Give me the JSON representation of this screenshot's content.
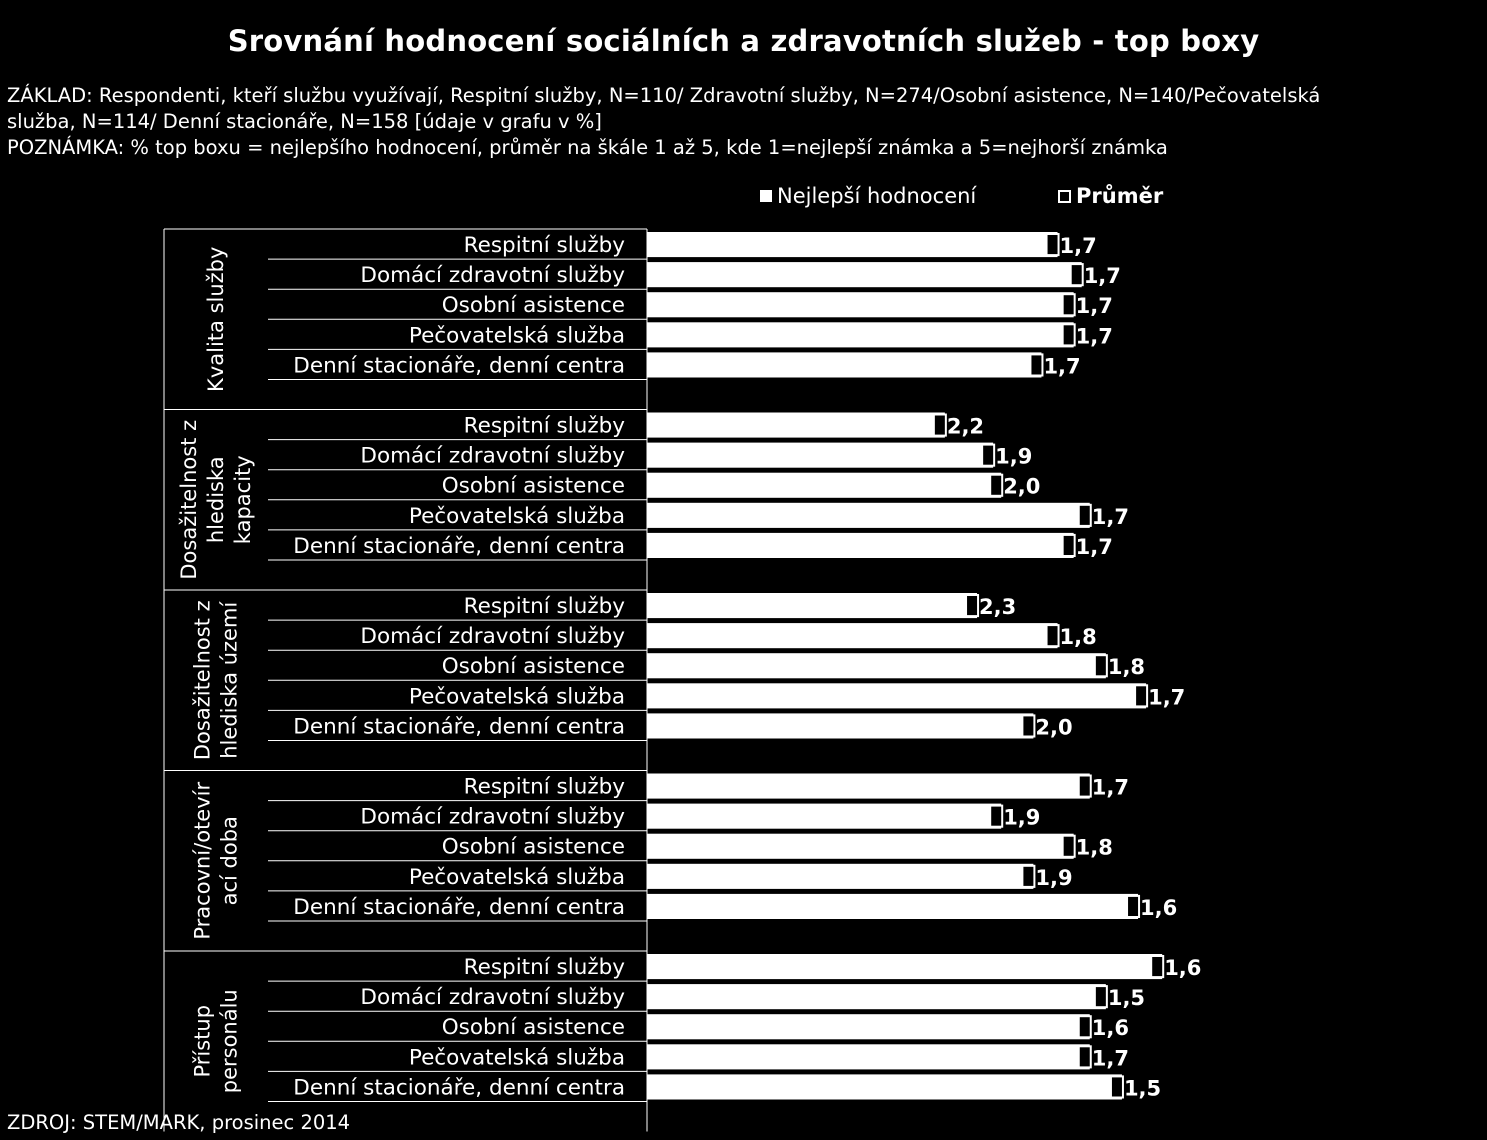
{
  "title": "Srovnání hodnocení sociálních a zdravotních služeb - top boxy",
  "basis_line1": "ZÁKLAD: Respondenti, kteří službu využívají, Respitní služby, N=110/ Zdravotní služby, N=274/Osobní asistence, N=140/Pečovatelská",
  "basis_line2": "služba, N=114/ Denní stacionáře, N=158 [údaje v grafu v %]",
  "note": "POZNÁMKA: % top boxu = nejlepšího hodnocení, průměr na škále 1 až 5, kde 1=nejlepší známka a  5=nejhorší známka",
  "legend": {
    "best": "Nejlepší hodnocení",
    "avg": "Průměr"
  },
  "source": "ZDROJ: STEM/MARK, prosinec 2014",
  "colors": {
    "background": "#000000",
    "bar": "#ffffff",
    "marker_fill": "#000000"
  },
  "chart_data": {
    "type": "bar",
    "orientation": "horizontal",
    "series": [
      {
        "name": "Nejlepší hodnocení"
      },
      {
        "name": "Průměr"
      }
    ],
    "groups": [
      {
        "label": "Kvalita služby",
        "label_lines": [
          "Kvalita služby"
        ],
        "items": [
          {
            "category": "Respitní služby",
            "best": 51,
            "avg": "1,7"
          },
          {
            "category": "Domácí zdravotní služby",
            "best": 54,
            "avg": "1,7"
          },
          {
            "category": "Osobní asistence",
            "best": 53,
            "avg": "1,7"
          },
          {
            "category": "Pečovatelská služba",
            "best": 53,
            "avg": "1,7"
          },
          {
            "category": "Denní stacionáře, denní centra",
            "best": 49,
            "avg": "1,7"
          }
        ]
      },
      {
        "label": "Dosažitelnost z hlediska kapacity",
        "label_lines": [
          "Dosažitelnost z",
          "hlediska",
          "kapacity"
        ],
        "items": [
          {
            "category": "Respitní služby",
            "best": 37,
            "avg": "2,2"
          },
          {
            "category": "Domácí zdravotní služby",
            "best": 43,
            "avg": "1,9"
          },
          {
            "category": "Osobní asistence",
            "best": 44,
            "avg": "2,0"
          },
          {
            "category": "Pečovatelská služba",
            "best": 55,
            "avg": "1,7"
          },
          {
            "category": "Denní stacionáře, denní centra",
            "best": 53,
            "avg": "1,7"
          }
        ]
      },
      {
        "label": "Dosažitelnost z hlediska území",
        "label_lines": [
          "Dosažitelnost z",
          "hlediska území"
        ],
        "items": [
          {
            "category": "Respitní služby",
            "best": 41,
            "avg": "2,3"
          },
          {
            "category": "Domácí zdravotní služby",
            "best": 51,
            "avg": "1,8"
          },
          {
            "category": "Osobní asistence",
            "best": 57,
            "avg": "1,8"
          },
          {
            "category": "Pečovatelská služba",
            "best": 62,
            "avg": "1,7"
          },
          {
            "category": "Denní stacionáře, denní centra",
            "best": 48,
            "avg": "2,0"
          }
        ]
      },
      {
        "label": "Pracovní/otevírací doba",
        "label_lines": [
          "Pracovní/otevír",
          "ací doba"
        ],
        "items": [
          {
            "category": "Respitní služby",
            "best": 55,
            "avg": "1,7"
          },
          {
            "category": "Domácí zdravotní služby",
            "best": 44,
            "avg": "1,9"
          },
          {
            "category": "Osobní asistence",
            "best": 53,
            "avg": "1,8"
          },
          {
            "category": "Pečovatelská služba",
            "best": 48,
            "avg": "1,9"
          },
          {
            "category": "Denní stacionáře, denní centra",
            "best": 61,
            "avg": "1,6"
          }
        ]
      },
      {
        "label": "Přístup personálu",
        "label_lines": [
          "Přístup",
          "personálu"
        ],
        "items": [
          {
            "category": "Respitní služby",
            "best": 64,
            "avg": "1,6"
          },
          {
            "category": "Domácí zdravotní služby",
            "best": 57,
            "avg": "1,5"
          },
          {
            "category": "Osobní asistence",
            "best": 55,
            "avg": "1,6"
          },
          {
            "category": "Pečovatelská služba",
            "best": 55,
            "avg": "1,7"
          },
          {
            "category": "Denní stacionáře, denní centra",
            "best": 59,
            "avg": "1,5"
          }
        ]
      }
    ],
    "xlim": [
      0,
      100
    ],
    "grid": false,
    "legend_position": "top-right"
  }
}
